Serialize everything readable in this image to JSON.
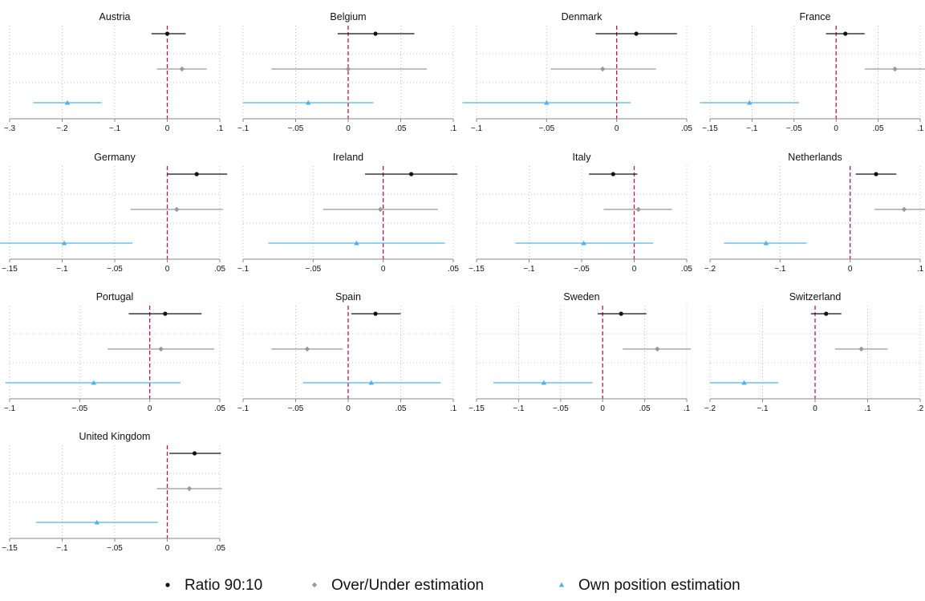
{
  "colors": {
    "ratio": "#111111",
    "over_under": "#999999",
    "own_position": "#4fb3e8",
    "zero_line": "#c0144c",
    "grid": "#b0b0b0",
    "axis": "#888888"
  },
  "legend": [
    {
      "label": "Ratio 90:10",
      "marker": "circle",
      "color_key": "ratio"
    },
    {
      "label": "Over/Under estimation",
      "marker": "diamond",
      "color_key": "over_under"
    },
    {
      "label": "Own position estimation",
      "marker": "triangle",
      "color_key": "own_position"
    }
  ],
  "chart_data": [
    {
      "type": "scatter",
      "title": "Austria",
      "xlim": [
        -0.3,
        0.1
      ],
      "ticks": [
        -0.3,
        -0.2,
        -0.1,
        0,
        0.1
      ],
      "tick_labels": [
        "−.3",
        "−.2",
        "−.1",
        "0",
        ".1"
      ],
      "series": [
        {
          "name": "Ratio 90:10",
          "estimate": 0.0,
          "ci": [
            -0.03,
            0.035
          ]
        },
        {
          "name": "Over/Under estimation",
          "estimate": 0.028,
          "ci": [
            -0.02,
            0.075
          ]
        },
        {
          "name": "Own position estimation",
          "estimate": -0.19,
          "ci": [
            -0.255,
            -0.125
          ]
        }
      ]
    },
    {
      "type": "scatter",
      "title": "Belgium",
      "xlim": [
        -0.1,
        0.1
      ],
      "ticks": [
        -0.1,
        -0.05,
        0,
        0.05,
        0.1
      ],
      "tick_labels": [
        "−.1",
        "−.05",
        "0",
        ".05",
        ".1"
      ],
      "series": [
        {
          "name": "Ratio 90:10",
          "estimate": 0.026,
          "ci": [
            -0.01,
            0.063
          ]
        },
        {
          "name": "Over/Under estimation",
          "estimate": 0.0,
          "ci": [
            -0.073,
            0.075
          ]
        },
        {
          "name": "Own position estimation",
          "estimate": -0.038,
          "ci": [
            -0.1,
            0.024
          ]
        }
      ]
    },
    {
      "type": "scatter",
      "title": "Denmark",
      "xlim": [
        -0.1,
        0.05
      ],
      "ticks": [
        -0.1,
        -0.05,
        0,
        0.05
      ],
      "tick_labels": [
        "−.1",
        "−.05",
        "0",
        ".05"
      ],
      "series": [
        {
          "name": "Ratio 90:10",
          "estimate": 0.014,
          "ci": [
            -0.015,
            0.043
          ]
        },
        {
          "name": "Over/Under estimation",
          "estimate": -0.01,
          "ci": [
            -0.047,
            0.028
          ]
        },
        {
          "name": "Own position estimation",
          "estimate": -0.05,
          "ci": [
            -0.11,
            0.01
          ]
        }
      ]
    },
    {
      "type": "scatter",
      "title": "France",
      "xlim": [
        -0.15,
        0.1
      ],
      "ticks": [
        -0.15,
        -0.1,
        -0.05,
        0,
        0.05,
        0.1
      ],
      "tick_labels": [
        "−.15",
        "−.1",
        "−.05",
        "0",
        ".05",
        ".1"
      ],
      "series": [
        {
          "name": "Ratio 90:10",
          "estimate": 0.011,
          "ci": [
            -0.012,
            0.034
          ]
        },
        {
          "name": "Over/Under estimation",
          "estimate": 0.07,
          "ci": [
            0.034,
            0.106
          ]
        },
        {
          "name": "Own position estimation",
          "estimate": -0.103,
          "ci": [
            -0.162,
            -0.044
          ]
        }
      ]
    },
    {
      "type": "scatter",
      "title": "Germany",
      "xlim": [
        -0.15,
        0.05
      ],
      "ticks": [
        -0.15,
        -0.1,
        -0.05,
        0,
        0.05
      ],
      "tick_labels": [
        "−.15",
        "−.1",
        "−.05",
        "0",
        ".05"
      ],
      "series": [
        {
          "name": "Ratio 90:10",
          "estimate": 0.028,
          "ci": [
            0.0,
            0.057
          ]
        },
        {
          "name": "Over/Under estimation",
          "estimate": 0.009,
          "ci": [
            -0.035,
            0.053
          ]
        },
        {
          "name": "Own position estimation",
          "estimate": -0.098,
          "ci": [
            -0.163,
            -0.033
          ]
        }
      ]
    },
    {
      "type": "scatter",
      "title": "Ireland",
      "xlim": [
        -0.1,
        0.05
      ],
      "ticks": [
        -0.1,
        -0.05,
        0,
        0.05
      ],
      "tick_labels": [
        "−.1",
        "−.05",
        "0",
        ".05"
      ],
      "series": [
        {
          "name": "Ratio 90:10",
          "estimate": 0.02,
          "ci": [
            -0.013,
            0.053
          ]
        },
        {
          "name": "Over/Under estimation",
          "estimate": -0.002,
          "ci": [
            -0.043,
            0.039
          ]
        },
        {
          "name": "Own position estimation",
          "estimate": -0.019,
          "ci": [
            -0.082,
            0.044
          ]
        }
      ]
    },
    {
      "type": "scatter",
      "title": "Italy",
      "xlim": [
        -0.15,
        0.05
      ],
      "ticks": [
        -0.15,
        -0.1,
        -0.05,
        0,
        0.05
      ],
      "tick_labels": [
        "−.15",
        "−.1",
        "−.05",
        "0",
        ".05"
      ],
      "series": [
        {
          "name": "Ratio 90:10",
          "estimate": -0.02,
          "ci": [
            -0.043,
            0.003
          ]
        },
        {
          "name": "Over/Under estimation",
          "estimate": 0.004,
          "ci": [
            -0.029,
            0.036
          ]
        },
        {
          "name": "Own position estimation",
          "estimate": -0.048,
          "ci": [
            -0.113,
            0.018
          ]
        }
      ]
    },
    {
      "type": "scatter",
      "title": "Netherlands",
      "xlim": [
        -0.2,
        0.1
      ],
      "ticks": [
        -0.2,
        -0.1,
        0,
        0.1
      ],
      "tick_labels": [
        "−.2",
        "−.1",
        "0",
        ".1"
      ],
      "series": [
        {
          "name": "Ratio 90:10",
          "estimate": 0.037,
          "ci": [
            0.008,
            0.066
          ]
        },
        {
          "name": "Over/Under estimation",
          "estimate": 0.077,
          "ci": [
            0.035,
            0.12
          ]
        },
        {
          "name": "Own position estimation",
          "estimate": -0.12,
          "ci": [
            -0.18,
            -0.062
          ]
        }
      ]
    },
    {
      "type": "scatter",
      "title": "Portugal",
      "xlim": [
        -0.1,
        0.05
      ],
      "ticks": [
        -0.1,
        -0.05,
        0,
        0.05
      ],
      "tick_labels": [
        "−.1",
        "−.05",
        "0",
        ".05"
      ],
      "series": [
        {
          "name": "Ratio 90:10",
          "estimate": 0.011,
          "ci": [
            -0.015,
            0.037
          ]
        },
        {
          "name": "Over/Under estimation",
          "estimate": 0.008,
          "ci": [
            -0.03,
            0.046
          ]
        },
        {
          "name": "Own position estimation",
          "estimate": -0.04,
          "ci": [
            -0.103,
            0.022
          ]
        }
      ]
    },
    {
      "type": "scatter",
      "title": "Spain",
      "xlim": [
        -0.1,
        0.1
      ],
      "ticks": [
        -0.1,
        -0.05,
        0,
        0.05,
        0.1
      ],
      "tick_labels": [
        "−.1",
        "−.05",
        "0",
        ".05",
        ".1"
      ],
      "series": [
        {
          "name": "Ratio 90:10",
          "estimate": 0.026,
          "ci": [
            0.003,
            0.05
          ]
        },
        {
          "name": "Over/Under estimation",
          "estimate": -0.039,
          "ci": [
            -0.073,
            -0.005
          ]
        },
        {
          "name": "Own position estimation",
          "estimate": 0.022,
          "ci": [
            -0.043,
            0.088
          ]
        }
      ]
    },
    {
      "type": "scatter",
      "title": "Sweden",
      "xlim": [
        -0.15,
        0.1
      ],
      "ticks": [
        -0.15,
        -0.1,
        -0.05,
        0,
        0.05,
        0.1
      ],
      "tick_labels": [
        "−.15",
        "−.1",
        "−.05",
        "0",
        ".05",
        ".1"
      ],
      "series": [
        {
          "name": "Ratio 90:10",
          "estimate": 0.022,
          "ci": [
            -0.006,
            0.052
          ]
        },
        {
          "name": "Over/Under estimation",
          "estimate": 0.065,
          "ci": [
            0.024,
            0.105
          ]
        },
        {
          "name": "Own position estimation",
          "estimate": -0.07,
          "ci": [
            -0.13,
            -0.012
          ]
        }
      ]
    },
    {
      "type": "scatter",
      "title": "Switzerland",
      "xlim": [
        -0.2,
        0.2
      ],
      "ticks": [
        -0.2,
        -0.1,
        0,
        0.1,
        0.2
      ],
      "tick_labels": [
        "−.2",
        "−.1",
        "0",
        ".1",
        ".2"
      ],
      "series": [
        {
          "name": "Ratio 90:10",
          "estimate": 0.021,
          "ci": [
            -0.008,
            0.05
          ]
        },
        {
          "name": "Over/Under estimation",
          "estimate": 0.088,
          "ci": [
            0.038,
            0.138
          ]
        },
        {
          "name": "Own position estimation",
          "estimate": -0.135,
          "ci": [
            -0.2,
            -0.07
          ]
        }
      ]
    },
    {
      "type": "scatter",
      "title": "United Kingdom",
      "xlim": [
        -0.15,
        0.05
      ],
      "ticks": [
        -0.15,
        -0.1,
        -0.05,
        0,
        0.05
      ],
      "tick_labels": [
        "−.15",
        "−.1",
        "−.05",
        "0",
        ".05"
      ],
      "series": [
        {
          "name": "Ratio 90:10",
          "estimate": 0.026,
          "ci": [
            0.002,
            0.051
          ]
        },
        {
          "name": "Over/Under estimation",
          "estimate": 0.021,
          "ci": [
            -0.01,
            0.052
          ]
        },
        {
          "name": "Own position estimation",
          "estimate": -0.067,
          "ci": [
            -0.125,
            -0.009
          ]
        }
      ]
    }
  ]
}
